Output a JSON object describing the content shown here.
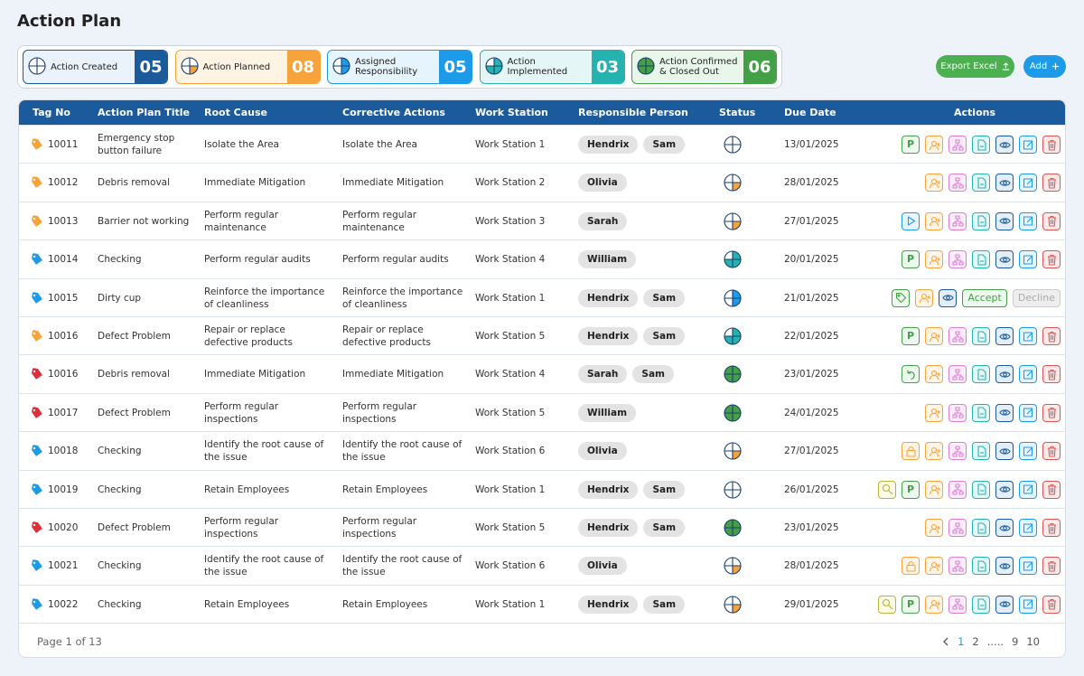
{
  "header": {
    "title": "Action Plan"
  },
  "summary": [
    {
      "label": "Action Created",
      "count": "05"
    },
    {
      "label": "Action Planned",
      "count": "08"
    },
    {
      "label": "Assigned Responsibility",
      "count": "05"
    },
    {
      "label": "Action Implemented",
      "count": "03"
    },
    {
      "label": "Action Confirmed & Closed Out",
      "count": "06"
    }
  ],
  "buttons": {
    "export": "Export Excel",
    "add": "Add"
  },
  "table": {
    "columns": [
      "Tag No",
      "Action Plan Title",
      "Root Cause",
      "Corrective Actions",
      "Work Station",
      "Responsible Person",
      "Status",
      "Due Date",
      "Actions"
    ],
    "action_labels": {
      "publish": "P",
      "accept": "Accept",
      "decline": "Decline"
    },
    "rows": [
      {
        "tag": "10011",
        "title": "Emergency stop button failure",
        "root_cause": "Isolate the Area",
        "corrective_action": "Isolate the Area",
        "work_station": "Work Station 1",
        "persons": [
          "Hendrix",
          "Sam"
        ],
        "due_date": "13/01/2025"
      },
      {
        "tag": "10012",
        "title": "Debris removal",
        "root_cause": "Immediate Mitigation",
        "corrective_action": "Immediate Mitigation",
        "work_station": "Work Station 2",
        "persons": [
          "Olivia"
        ],
        "due_date": "28/01/2025"
      },
      {
        "tag": "10013",
        "title": "Barrier not working",
        "root_cause": "Perform regular maintenance",
        "corrective_action": "Perform regular maintenance",
        "work_station": "Work Station 3",
        "persons": [
          "Sarah"
        ],
        "due_date": "27/01/2025"
      },
      {
        "tag": "10014",
        "title": "Checking",
        "root_cause": "Perform regular audits",
        "corrective_action": "Perform regular audits",
        "work_station": "Work Station 4",
        "persons": [
          "William"
        ],
        "due_date": "20/01/2025"
      },
      {
        "tag": "10015",
        "title": "Dirty cup",
        "root_cause": "Reinforce the importance of cleanliness",
        "corrective_action": "Reinforce the importance of cleanliness",
        "work_station": "Work Station 1",
        "persons": [
          "Hendrix",
          "Sam"
        ],
        "due_date": "21/01/2025"
      },
      {
        "tag": "10016",
        "title": "Defect Problem",
        "root_cause": "Repair or replace defective products",
        "corrective_action": "Repair or replace defective products",
        "work_station": "Work Station 5",
        "persons": [
          "Hendrix",
          "Sam"
        ],
        "due_date": "22/01/2025"
      },
      {
        "tag": "10016",
        "title": "Debris removal",
        "root_cause": "Immediate Mitigation",
        "corrective_action": "Immediate Mitigation",
        "work_station": "Work Station 4",
        "persons": [
          "Sarah",
          "Sam"
        ],
        "due_date": "23/01/2025"
      },
      {
        "tag": "10017",
        "title": "Defect Problem",
        "root_cause": "Perform regular inspections",
        "corrective_action": "Perform regular inspections",
        "work_station": "Work Station 5",
        "persons": [
          "William"
        ],
        "due_date": "24/01/2025"
      },
      {
        "tag": "10018",
        "title": "Checking",
        "root_cause": "Identify the root cause of the issue",
        "corrective_action": "Identify the root cause of the issue",
        "work_station": "Work Station 6",
        "persons": [
          "Olivia"
        ],
        "due_date": "27/01/2025"
      },
      {
        "tag": "10019",
        "title": "Checking",
        "root_cause": "Retain Employees",
        "corrective_action": "Retain Employees",
        "work_station": "Work Station 1",
        "persons": [
          "Hendrix",
          "Sam"
        ],
        "due_date": "26/01/2025"
      },
      {
        "tag": "10020",
        "title": "Defect Problem",
        "root_cause": "Perform regular inspections",
        "corrective_action": "Perform regular inspections",
        "work_station": "Work Station 5",
        "persons": [
          "Hendrix",
          "Sam"
        ],
        "due_date": "23/01/2025"
      },
      {
        "tag": "10021",
        "title": "Checking",
        "root_cause": "Identify the root cause of the issue",
        "corrective_action": "Identify the root cause of the issue",
        "work_station": "Work Station 6",
        "persons": [
          "Olivia"
        ],
        "due_date": "28/01/2025"
      },
      {
        "tag": "10022",
        "title": "Checking",
        "root_cause": "Retain Employees",
        "corrective_action": "Retain Employees",
        "work_station": "Work Station 1",
        "persons": [
          "Hendrix",
          "Sam"
        ],
        "due_date": "29/01/2025"
      }
    ]
  },
  "pagination": {
    "summary": "Page 1 of 13",
    "pages": [
      "1",
      "2",
      ".....",
      "9",
      "10"
    ]
  }
}
